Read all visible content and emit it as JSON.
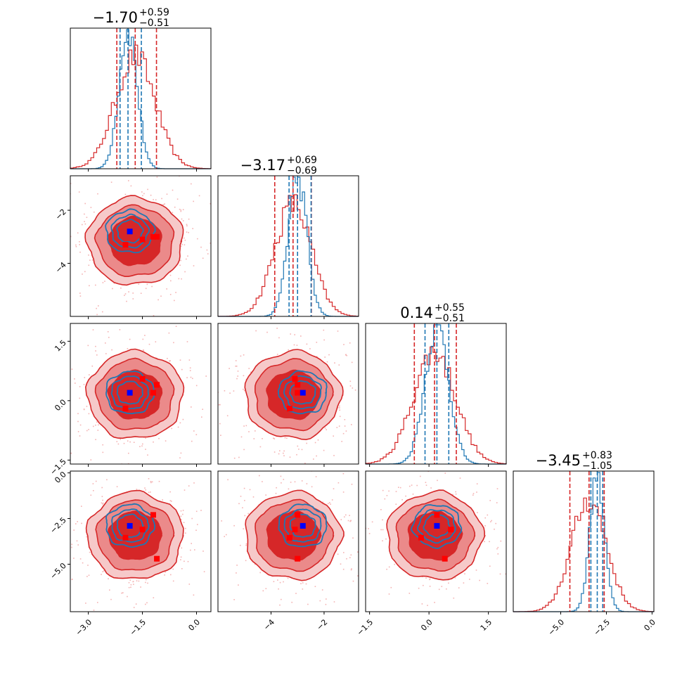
{
  "chart_data": {
    "type": "corner",
    "n_params": 4,
    "colors": {
      "red": "#d62728",
      "red_mid": "#eb8a8a",
      "red_light": "#f6c9c9",
      "red_scatter": "#f4b3b3",
      "blue": "#1f77b4",
      "truth_blue": "#0000ff",
      "marker_red": "#ff0000"
    },
    "params": [
      {
        "range": [
          -3.5,
          0.4
        ],
        "ticks": [
          {
            "v": -3.0,
            "label": "−3.0"
          },
          {
            "v": -1.5,
            "label": "−1.5"
          },
          {
            "v": 0.0,
            "label": "0.0"
          }
        ],
        "red": {
          "mean": -1.7,
          "sd": 0.55
        },
        "blue": {
          "mean": -1.9,
          "sd": 0.25
        },
        "red_quantiles": [
          -2.21,
          -1.7,
          -1.11
        ],
        "blue_quantiles": [
          -2.12,
          -1.9,
          -1.53
        ],
        "title": {
          "main": "−1.70",
          "up": "+0.59",
          "down": "−0.51"
        },
        "blue_point": -1.85,
        "red_points": [
          -1.97,
          -1.5,
          -1.2,
          -1.1
        ]
      },
      {
        "range": [
          -6.0,
          -0.7
        ],
        "ticks": [
          {
            "v": -4.0,
            "label": "−4"
          },
          {
            "v": -2.0,
            "label": "−2"
          }
        ],
        "red": {
          "mean": -3.17,
          "sd": 0.69
        },
        "blue": {
          "mean": -3.0,
          "sd": 0.35
        },
        "red_quantiles": [
          -3.86,
          -3.17,
          -2.48
        ],
        "blue_quantiles": [
          -3.32,
          -3.0,
          -2.49
        ],
        "title": {
          "main": "−3.17",
          "up": "+0.69",
          "down": "−0.69"
        },
        "blue_point": -2.8,
        "red_points": [
          -3.3,
          -3.1,
          -3.0,
          -3.0
        ]
      },
      {
        "range": [
          -1.6,
          1.95
        ],
        "ticks": [
          {
            "v": -1.5,
            "label": "−1.5"
          },
          {
            "v": 0.0,
            "label": "0.0"
          },
          {
            "v": 1.5,
            "label": "1.5"
          }
        ],
        "red": {
          "mean": 0.14,
          "sd": 0.53
        },
        "blue": {
          "mean": 0.2,
          "sd": 0.3
        },
        "red_quantiles": [
          -0.37,
          0.14,
          0.69
        ],
        "blue_quantiles": [
          -0.1,
          0.2,
          0.5
        ],
        "title": {
          "main": "0.14",
          "up": "+0.55",
          "down": "−0.51"
        },
        "blue_point": 0.2,
        "red_points": [
          -0.2,
          0.55,
          0.2,
          0.4
        ]
      },
      {
        "range": [
          -7.6,
          0.1
        ],
        "ticks": [
          {
            "v": -5.0,
            "label": "−5.0"
          },
          {
            "v": -2.5,
            "label": "−2.5"
          },
          {
            "v": 0.0,
            "label": "0.0"
          }
        ],
        "red": {
          "mean": -3.45,
          "sd": 0.95
        },
        "blue": {
          "mean": -3.0,
          "sd": 0.4
        },
        "red_quantiles": [
          -4.5,
          -3.45,
          -2.62
        ],
        "blue_quantiles": [
          -3.35,
          -3.0,
          -2.7
        ],
        "title": {
          "main": "−3.45",
          "up": "+0.83",
          "down": "−1.05"
        },
        "blue_point": -2.9,
        "red_points": [
          -3.55,
          -3.1,
          -2.3,
          -4.7
        ]
      }
    ]
  }
}
